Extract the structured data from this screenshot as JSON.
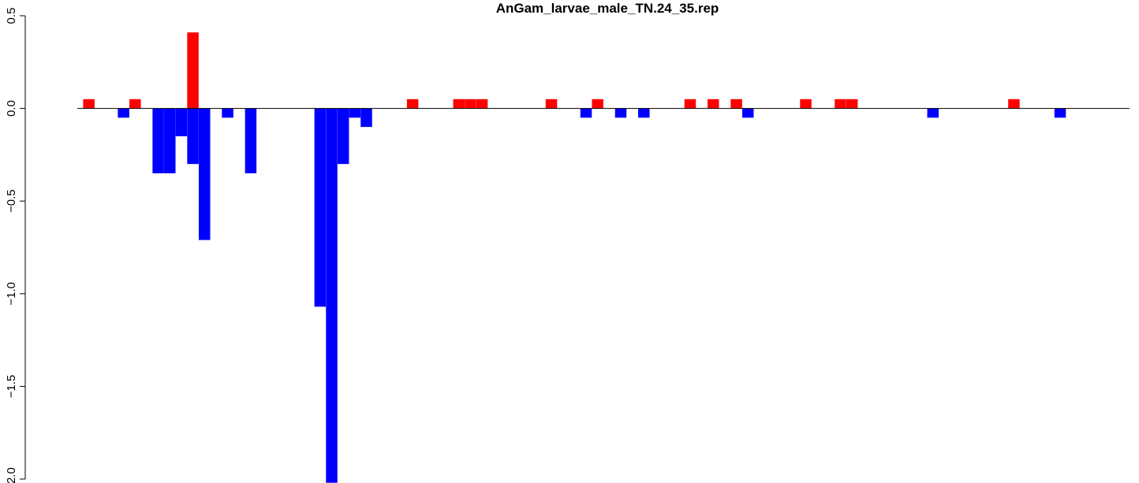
{
  "chart_data": {
    "type": "bar",
    "title": "AnGam_larvae_male_TN.24_35.rep",
    "xlabel": "",
    "ylabel": "",
    "ylim": [
      -2.0,
      0.5
    ],
    "y_ticks": [
      0.5,
      0.0,
      -0.5,
      -1.0,
      -1.5,
      -2.0
    ],
    "y_tick_labels": [
      "0.5",
      "0.0",
      "−0.5",
      "−1.0",
      "−1.5",
      "−2.0"
    ],
    "x_range": [
      0,
      91
    ],
    "grid": false,
    "legend": "none",
    "positive_color": "#ff0000",
    "negative_color": "#0000ff",
    "baseline_color": "#000000",
    "bars": [
      {
        "x": 1,
        "value": 0.05
      },
      {
        "x": 4,
        "value": -0.05
      },
      {
        "x": 5,
        "value": 0.05
      },
      {
        "x": 7,
        "value": -0.35
      },
      {
        "x": 8,
        "value": -0.35
      },
      {
        "x": 9,
        "value": -0.15
      },
      {
        "x": 10,
        "value": 0.41
      },
      {
        "x": 10,
        "value": -0.3
      },
      {
        "x": 11,
        "value": -0.71
      },
      {
        "x": 13,
        "value": -0.05
      },
      {
        "x": 15,
        "value": -0.35
      },
      {
        "x": 21,
        "value": -1.07
      },
      {
        "x": 22,
        "value": -2.02
      },
      {
        "x": 23,
        "value": -0.3
      },
      {
        "x": 24,
        "value": -0.05
      },
      {
        "x": 25,
        "value": -0.1
      },
      {
        "x": 29,
        "value": 0.05
      },
      {
        "x": 33,
        "value": 0.05
      },
      {
        "x": 34,
        "value": 0.05
      },
      {
        "x": 35,
        "value": 0.05
      },
      {
        "x": 41,
        "value": 0.05
      },
      {
        "x": 44,
        "value": -0.05
      },
      {
        "x": 45,
        "value": 0.05
      },
      {
        "x": 47,
        "value": -0.05
      },
      {
        "x": 49,
        "value": -0.05
      },
      {
        "x": 53,
        "value": 0.05
      },
      {
        "x": 55,
        "value": 0.05
      },
      {
        "x": 57,
        "value": 0.05
      },
      {
        "x": 58,
        "value": -0.05
      },
      {
        "x": 63,
        "value": 0.05
      },
      {
        "x": 66,
        "value": 0.05
      },
      {
        "x": 67,
        "value": 0.05
      },
      {
        "x": 74,
        "value": -0.05
      },
      {
        "x": 81,
        "value": 0.05
      },
      {
        "x": 85,
        "value": -0.05
      }
    ]
  }
}
